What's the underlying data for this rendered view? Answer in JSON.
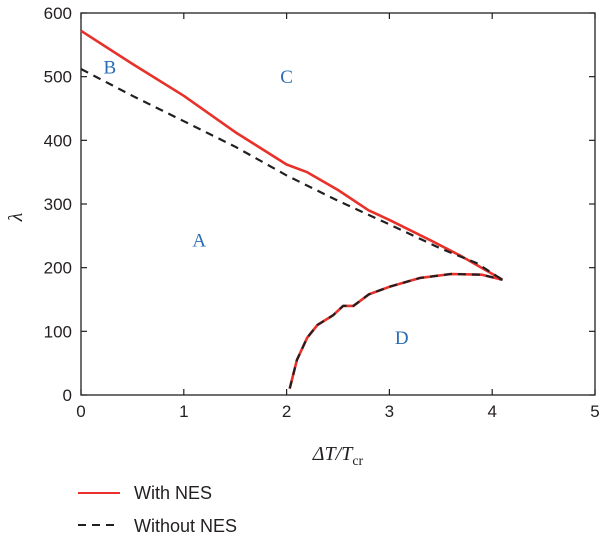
{
  "chart_data": {
    "type": "line",
    "title": "",
    "xlabel": {
      "main": "ΔT/T",
      "sub": "cr"
    },
    "ylabel": "λ",
    "xlim": [
      0,
      5
    ],
    "ylim": [
      0,
      600
    ],
    "xticks": [
      0,
      1,
      2,
      3,
      4,
      5
    ],
    "yticks": [
      0,
      100,
      200,
      300,
      400,
      500,
      600
    ],
    "grid": false,
    "legend_position": "bottom-left, below plot",
    "region_labels": [
      {
        "text": "A",
        "x": 1.15,
        "y": 233
      },
      {
        "text": "B",
        "x": 0.28,
        "y": 505
      },
      {
        "text": "C",
        "x": 2.0,
        "y": 490
      },
      {
        "text": "D",
        "x": 3.12,
        "y": 80
      }
    ],
    "series": [
      {
        "name": "With NES",
        "color": "#e8312a",
        "style": "solid",
        "segments": [
          [
            [
              0,
              572
            ],
            [
              0.5,
              520
            ],
            [
              1.0,
              470
            ],
            [
              1.5,
              413
            ],
            [
              2.0,
              362
            ],
            [
              2.2,
              350
            ],
            [
              2.5,
              322
            ],
            [
              2.8,
              290
            ],
            [
              3.0,
              275
            ],
            [
              3.4,
              243
            ],
            [
              3.7,
              218
            ],
            [
              4.1,
              181
            ]
          ],
          [
            [
              2.03,
              10
            ],
            [
              2.1,
              55
            ],
            [
              2.2,
              90
            ],
            [
              2.3,
              110
            ],
            [
              2.45,
              125
            ],
            [
              2.55,
              140
            ],
            [
              2.65,
              140
            ],
            [
              2.8,
              158
            ],
            [
              3.0,
              170
            ],
            [
              3.3,
              184
            ],
            [
              3.6,
              190
            ],
            [
              3.9,
              189
            ],
            [
              4.1,
              181
            ]
          ]
        ]
      },
      {
        "name": "Without NES",
        "color": "#231f20",
        "style": "dashed",
        "segments": [
          [
            [
              0,
              512
            ],
            [
              0.5,
              470
            ],
            [
              1.0,
              430
            ],
            [
              1.5,
              390
            ],
            [
              2.0,
              345
            ],
            [
              2.5,
              305
            ],
            [
              3.0,
              268
            ],
            [
              3.5,
              230
            ],
            [
              3.85,
              207
            ],
            [
              4.1,
              181
            ]
          ],
          [
            [
              2.03,
              10
            ],
            [
              2.1,
              55
            ],
            [
              2.2,
              90
            ],
            [
              2.3,
              110
            ],
            [
              2.45,
              125
            ],
            [
              2.55,
              140
            ],
            [
              2.65,
              140
            ],
            [
              2.8,
              158
            ],
            [
              3.0,
              170
            ],
            [
              3.3,
              184
            ],
            [
              3.6,
              190
            ],
            [
              3.9,
              189
            ],
            [
              4.1,
              181
            ]
          ]
        ]
      }
    ]
  }
}
